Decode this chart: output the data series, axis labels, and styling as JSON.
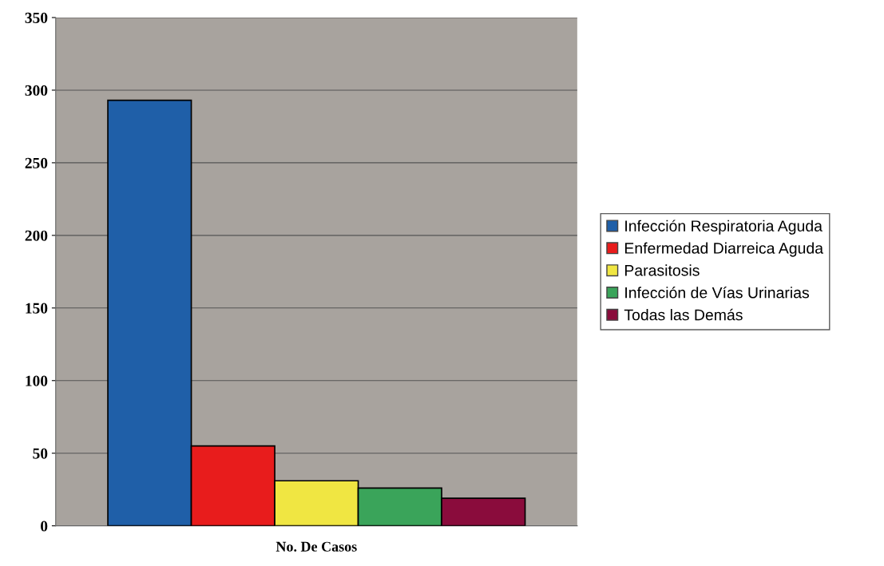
{
  "chart_data": {
    "type": "bar",
    "categories": [
      "No. De Casos"
    ],
    "series": [
      {
        "name": "Infección Respiratoria Aguda",
        "color": "#1f5fa8",
        "values": [
          293
        ]
      },
      {
        "name": "Enfermedad Diarreica Aguda",
        "color": "#e81c1c",
        "values": [
          55
        ]
      },
      {
        "name": "Parasitosis",
        "color": "#f0e642",
        "values": [
          31
        ]
      },
      {
        "name": "Infección de Vías Urinarias",
        "color": "#3aa45a",
        "values": [
          26
        ]
      },
      {
        "name": "Todas las Demás",
        "color": "#8a0c3c",
        "values": [
          19
        ]
      }
    ],
    "ylim": [
      0,
      350
    ],
    "yticks": [
      0,
      50,
      100,
      150,
      200,
      250,
      300,
      350
    ],
    "grid": "y",
    "legend": "right"
  }
}
